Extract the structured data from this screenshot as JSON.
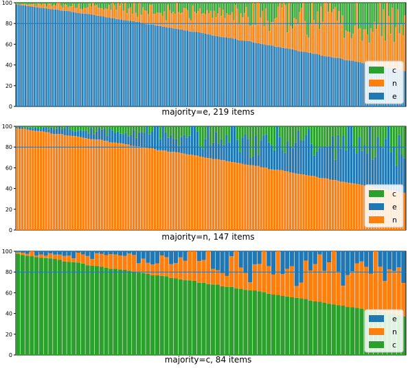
{
  "colors": {
    "e": "#1f77b4",
    "n": "#ff7f0e",
    "c": "#2ca02c",
    "ref": "#1f77b4",
    "bar_edge": "#ffffff",
    "axis": "#000000"
  },
  "chart_data": [
    {
      "type": "bar",
      "stacked": true,
      "title": "majority=e, 219 items",
      "xlabel": "",
      "ylabel": "",
      "ylim": [
        0,
        100
      ],
      "yticks": [
        0,
        20,
        40,
        60,
        80,
        100
      ],
      "reference_line": 80,
      "n_items": 219,
      "legend": {
        "placement": "bottom-right",
        "entries": [
          "c",
          "n",
          "e"
        ]
      },
      "series": [
        {
          "key": "e",
          "start": 98,
          "end": 34,
          "curve": 1.15
        },
        {
          "key": "n",
          "start": 2,
          "end": 38,
          "curve": 1.0
        },
        {
          "key": "c",
          "start": 0,
          "end": 28,
          "curve": 1.0
        }
      ]
    },
    {
      "type": "bar",
      "stacked": true,
      "title": "majority=n, 147 items",
      "xlabel": "",
      "ylabel": "",
      "ylim": [
        0,
        100
      ],
      "yticks": [
        0,
        20,
        40,
        60,
        80,
        100
      ],
      "reference_line": 80,
      "n_items": 147,
      "legend": {
        "placement": "bottom-right",
        "entries": [
          "c",
          "e",
          "n"
        ]
      },
      "series": [
        {
          "key": "n",
          "start": 98,
          "end": 36,
          "curve": 1.1
        },
        {
          "key": "e",
          "start": 1,
          "end": 42,
          "curve": 1.0
        },
        {
          "key": "c",
          "start": 1,
          "end": 34,
          "curve": 1.0
        }
      ]
    },
    {
      "type": "bar",
      "stacked": true,
      "title": "majority=c, 84 items",
      "xlabel": "",
      "ylabel": "",
      "ylim": [
        0,
        100
      ],
      "yticks": [
        0,
        20,
        40,
        60,
        80,
        100
      ],
      "reference_line": 80,
      "n_items": 84,
      "legend": {
        "placement": "bottom-right",
        "entries": [
          "e",
          "n",
          "c"
        ]
      },
      "series": [
        {
          "key": "c",
          "start": 97,
          "end": 38,
          "curve": 1.05
        },
        {
          "key": "n",
          "start": 2,
          "end": 46,
          "curve": 1.0
        },
        {
          "key": "e",
          "start": 1,
          "end": 16,
          "curve": 1.0
        }
      ]
    }
  ]
}
